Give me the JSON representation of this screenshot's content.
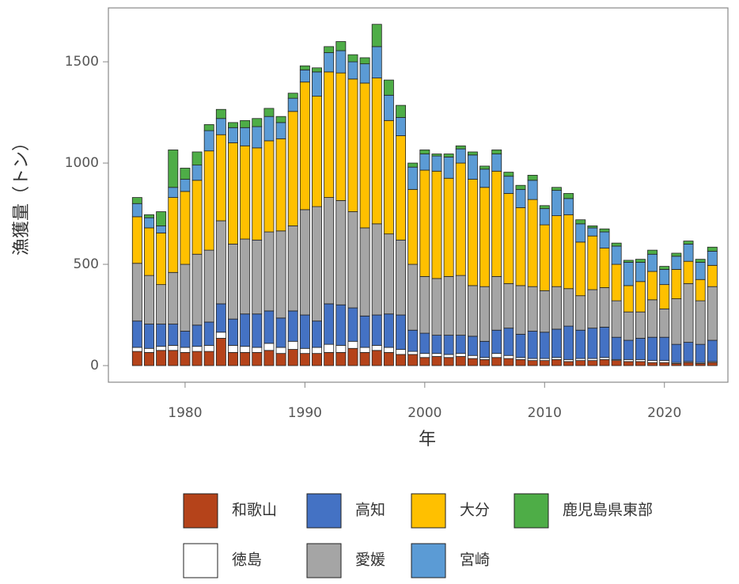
{
  "chart_data": {
    "type": "stacked-bar",
    "x_label": "年",
    "y_label": "漁獲量（トン）",
    "x": [
      1976,
      1977,
      1978,
      1979,
      1980,
      1981,
      1982,
      1983,
      1984,
      1985,
      1986,
      1987,
      1988,
      1989,
      1990,
      1991,
      1992,
      1993,
      1994,
      1995,
      1996,
      1997,
      1998,
      1999,
      2000,
      2001,
      2002,
      2003,
      2004,
      2005,
      2006,
      2007,
      2008,
      2009,
      2010,
      2011,
      2012,
      2013,
      2014,
      2015,
      2016,
      2017,
      2018,
      2019,
      2020,
      2021,
      2022,
      2023,
      2024
    ],
    "xlim": [
      1973.6,
      2025.3
    ],
    "xticks": [
      1980,
      1990,
      2000,
      2010,
      2020
    ],
    "ylim": [
      -82,
      1766
    ],
    "yticks": [
      0,
      500,
      1000,
      1500
    ],
    "series": [
      {
        "name": "和歌山",
        "color": "#b5431a",
        "values": [
          70,
          65,
          75,
          75,
          65,
          70,
          70,
          135,
          65,
          65,
          65,
          75,
          60,
          80,
          60,
          60,
          65,
          65,
          85,
          65,
          75,
          65,
          55,
          55,
          40,
          45,
          40,
          45,
          35,
          30,
          40,
          35,
          30,
          25,
          25,
          30,
          20,
          25,
          25,
          30,
          25,
          20,
          20,
          15,
          15,
          10,
          15,
          10,
          15
        ]
      },
      {
        "name": "徳島",
        "color": "#ffffff",
        "values": [
          20,
          20,
          20,
          25,
          25,
          25,
          30,
          30,
          35,
          30,
          25,
          35,
          30,
          40,
          25,
          30,
          40,
          35,
          35,
          25,
          25,
          25,
          25,
          15,
          20,
          15,
          15,
          15,
          15,
          10,
          20,
          15,
          10,
          10,
          10,
          10,
          10,
          10,
          10,
          10,
          5,
          10,
          10,
          10,
          10,
          5,
          5,
          5,
          5
        ]
      },
      {
        "name": "高知",
        "color": "#4472c4",
        "values": [
          130,
          120,
          110,
          105,
          80,
          105,
          115,
          140,
          130,
          160,
          165,
          160,
          145,
          150,
          165,
          130,
          200,
          200,
          165,
          155,
          150,
          165,
          170,
          105,
          100,
          90,
          95,
          90,
          95,
          80,
          115,
          135,
          115,
          135,
          130,
          140,
          165,
          140,
          150,
          150,
          110,
          95,
          105,
          115,
          115,
          90,
          95,
          90,
          105
        ]
      },
      {
        "name": "愛媛",
        "color": "#a5a5a5",
        "values": [
          285,
          240,
          195,
          255,
          330,
          350,
          355,
          410,
          370,
          370,
          365,
          390,
          430,
          420,
          520,
          565,
          525,
          515,
          475,
          435,
          450,
          395,
          370,
          325,
          280,
          280,
          290,
          295,
          250,
          270,
          265,
          220,
          240,
          220,
          205,
          210,
          185,
          170,
          190,
          195,
          180,
          140,
          130,
          185,
          140,
          225,
          290,
          215,
          265
        ]
      },
      {
        "name": "大分",
        "color": "#ffc000",
        "values": [
          230,
          235,
          255,
          370,
          360,
          365,
          490,
          425,
          500,
          460,
          455,
          450,
          455,
          565,
          630,
          545,
          620,
          630,
          655,
          715,
          720,
          560,
          515,
          370,
          525,
          530,
          485,
          555,
          525,
          490,
          520,
          445,
          385,
          430,
          325,
          350,
          365,
          265,
          265,
          195,
          180,
          130,
          150,
          140,
          120,
          145,
          110,
          105,
          105
        ]
      },
      {
        "name": "宮崎",
        "color": "#5b9bd5",
        "values": [
          65,
          50,
          35,
          50,
          60,
          75,
          100,
          80,
          75,
          90,
          105,
          120,
          80,
          65,
          60,
          120,
          95,
          110,
          85,
          95,
          155,
          125,
          90,
          110,
          80,
          75,
          105,
          70,
          120,
          90,
          85,
          85,
          90,
          95,
          80,
          125,
          80,
          90,
          40,
          80,
          90,
          115,
          95,
          85,
          75,
          65,
          85,
          85,
          70
        ]
      },
      {
        "name": "鹿児島県東部",
        "color": "#4ead47",
        "values": [
          30,
          15,
          70,
          185,
          55,
          65,
          30,
          45,
          25,
          35,
          40,
          40,
          30,
          25,
          20,
          20,
          30,
          45,
          35,
          30,
          110,
          75,
          60,
          20,
          20,
          10,
          15,
          15,
          15,
          15,
          20,
          20,
          20,
          25,
          15,
          15,
          25,
          20,
          10,
          15,
          15,
          10,
          15,
          20,
          15,
          15,
          15,
          15,
          20
        ]
      }
    ]
  }
}
